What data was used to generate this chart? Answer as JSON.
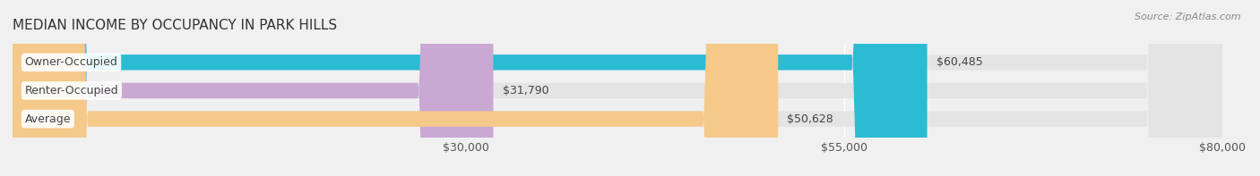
{
  "title": "MEDIAN INCOME BY OCCUPANCY IN PARK HILLS",
  "source_text": "Source: ZipAtlas.com",
  "categories": [
    "Owner-Occupied",
    "Renter-Occupied",
    "Average"
  ],
  "values": [
    60485,
    31790,
    50628
  ],
  "bar_colors": [
    "#2bbcd4",
    "#c9a8d4",
    "#f5c98a"
  ],
  "label_texts": [
    "$60,485",
    "$31,790",
    "$50,628"
  ],
  "xlim": [
    0,
    80000
  ],
  "xticks": [
    30000,
    55000,
    80000
  ],
  "xtick_labels": [
    "$30,000",
    "$55,000",
    "$80,000"
  ],
  "bar_height": 0.55,
  "background_color": "#f0f0f0",
  "bar_bg_color": "#e4e4e4",
  "title_fontsize": 11,
  "label_fontsize": 9,
  "tick_fontsize": 9
}
